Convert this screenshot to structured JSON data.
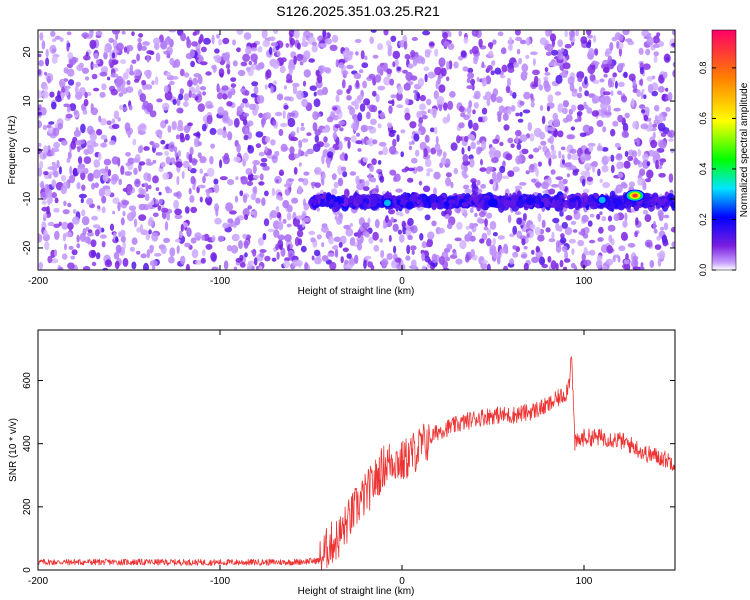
{
  "title": "S126.2025.351.03.25.R21",
  "chart_data": [
    {
      "type": "heatmap",
      "xlabel": "Height of straight line (km)",
      "ylabel": "Frequency (Hz)",
      "xlim": [
        -200,
        150
      ],
      "ylim": [
        -24.5,
        24.5
      ],
      "xticks": [
        -200,
        -100,
        0,
        100
      ],
      "yticks": [
        -20,
        -10,
        0,
        10,
        20
      ],
      "colorbar": {
        "label": "Normalized spectral amplitude",
        "ticks": [
          0.0,
          0.2,
          0.4,
          0.6,
          0.8
        ],
        "range": [
          0,
          0.95
        ],
        "colors": [
          "#ffffff",
          "#7b1fe0",
          "#0000ff",
          "#00e5ff",
          "#00ff00",
          "#ffff00",
          "#ff8000",
          "#ff0066"
        ]
      },
      "signal_band": {
        "freq": -10.5,
        "x_start": -50,
        "x_end": 150,
        "peaks": [
          {
            "x": -8,
            "freq": -10.8,
            "amp": 0.3
          },
          {
            "x": 50,
            "freq": -10.8,
            "amp": 0.28
          },
          {
            "x": 110,
            "freq": -10.2,
            "amp": 0.3
          },
          {
            "x": 128,
            "freq": -9.3,
            "amp": 0.9
          }
        ]
      }
    },
    {
      "type": "line",
      "xlabel": "Height of straight line (km)",
      "ylabel": "SNR (10 * v/v)",
      "xlim": [
        -200,
        150
      ],
      "ylim": [
        0,
        760
      ],
      "xticks": [
        -200,
        -100,
        0,
        100
      ],
      "yticks": [
        0,
        200,
        400,
        600
      ],
      "series": [
        {
          "color": "#ee3333",
          "x": [
            -200,
            -150,
            -100,
            -60,
            -45,
            -40,
            -35,
            -30,
            -25,
            -20,
            -15,
            -10,
            -5,
            0,
            10,
            20,
            30,
            40,
            50,
            60,
            70,
            80,
            85,
            90,
            92,
            93,
            95,
            100,
            110,
            120,
            128,
            133,
            140,
            150
          ],
          "y": [
            25,
            25,
            24,
            25,
            30,
            80,
            100,
            150,
            200,
            240,
            280,
            330,
            350,
            340,
            390,
            440,
            460,
            480,
            490,
            490,
            500,
            520,
            540,
            560,
            600,
            700,
            400,
            420,
            420,
            410,
            390,
            370,
            360,
            340
          ]
        }
      ]
    }
  ]
}
